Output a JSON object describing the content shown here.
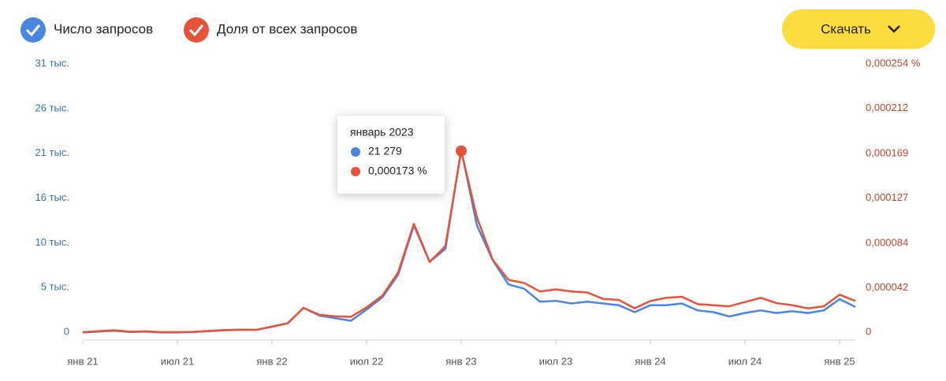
{
  "chart_data": {
    "type": "line",
    "legend_position": "top-left",
    "button_label": "Скачать",
    "categories": [
      "янв 21",
      null,
      null,
      null,
      null,
      null,
      "июл 21",
      null,
      null,
      null,
      null,
      null,
      "янв 22",
      null,
      null,
      null,
      null,
      null,
      "июл 22",
      null,
      null,
      null,
      null,
      null,
      "янв 23",
      null,
      null,
      null,
      null,
      null,
      "июл 23",
      null,
      null,
      null,
      null,
      null,
      "янв 24",
      null,
      null,
      null,
      null,
      null,
      "июл 24",
      null,
      null,
      null,
      null,
      null,
      "янв 25",
      null
    ],
    "series": [
      {
        "name": "Число запросов",
        "color": "#4a86e0",
        "values": [
          150,
          250,
          350,
          200,
          250,
          150,
          150,
          200,
          300,
          400,
          450,
          450,
          800,
          1200,
          3000,
          2100,
          1800,
          1500,
          2800,
          4200,
          6800,
          12500,
          8300,
          9800,
          21279,
          12500,
          8500,
          5700,
          5200,
          3700,
          3800,
          3500,
          3700,
          3500,
          3300,
          2500,
          3300,
          3300,
          3500,
          2700,
          2500,
          2000,
          2400,
          2700,
          2400,
          2600,
          2400,
          2700,
          4000,
          3100
        ]
      },
      {
        "name": "Доля от всех запросов",
        "color": "#e4533a",
        "axis": "y2",
        "values": [
          1.5e-06,
          2.5e-06,
          3.3e-06,
          2e-06,
          2.3e-06,
          1.5e-06,
          1.6e-06,
          1.8e-06,
          2.7e-06,
          3.5e-06,
          3.9e-06,
          3.7e-06,
          6.8e-06,
          1e-05,
          2.45e-05,
          1.8e-05,
          1.65e-05,
          1.6e-05,
          2.5e-05,
          3.6e-05,
          5.8e-05,
          0.000104,
          6.8e-05,
          8.3e-05,
          0.000173,
          0.00011,
          7e-05,
          5.1e-05,
          4.8e-05,
          4e-05,
          4.2e-05,
          4e-05,
          3.9e-05,
          3.3e-05,
          3.2e-05,
          2.4e-05,
          3.1e-05,
          3.4e-05,
          3.5e-05,
          2.8e-05,
          2.7e-05,
          2.6e-05,
          3e-05,
          3.4e-05,
          2.9e-05,
          2.7e-05,
          2.4e-05,
          2.6e-05,
          3.7e-05,
          3.1e-05
        ]
      }
    ],
    "ylim": [
      0,
      31000
    ],
    "yticks": [
      0,
      {
        "value": 5167,
        "label": "5 тыс."
      },
      {
        "value": 10333,
        "label": "10 тыс."
      },
      {
        "value": 15500,
        "label": "16 тыс."
      },
      {
        "value": 20667,
        "label": "21 тыс."
      },
      {
        "value": 25833,
        "label": "26 тыс."
      },
      {
        "value": 31000,
        "label": "31 тыс."
      }
    ],
    "y2lim": [
      0,
      0.000254
    ],
    "y2ticks": [
      0,
      {
        "value": 4.2e-05,
        "label": "0,000042"
      },
      {
        "value": 8.4e-05,
        "label": "0,000084"
      },
      {
        "value": 0.000127,
        "label": "0,000127"
      },
      {
        "value": 0.000169,
        "label": "0,000169"
      },
      {
        "value": 0.000212,
        "label": "0,000212"
      },
      {
        "value": 0.000254,
        "label": "0,000254 %"
      }
    ],
    "grid": false,
    "tooltip": {
      "title": "январь 2023",
      "index": 24,
      "labels": [
        "21 279",
        "0,000173 %"
      ]
    }
  }
}
